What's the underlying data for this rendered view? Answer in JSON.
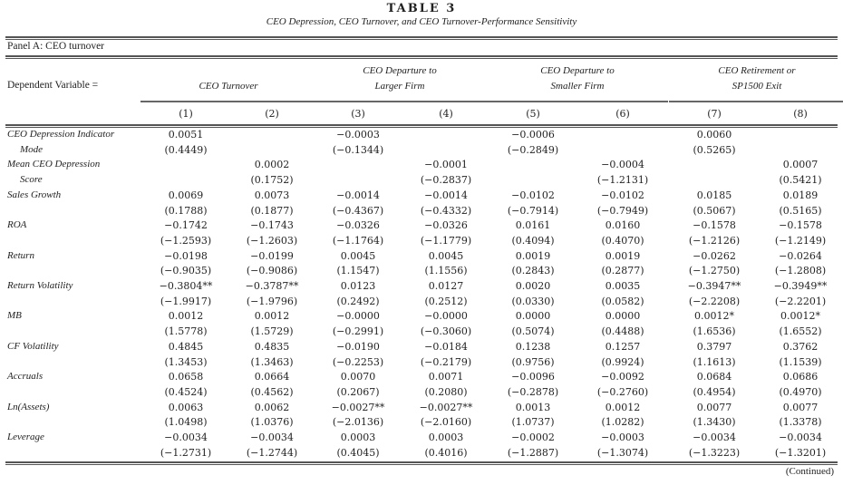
{
  "table": {
    "title": "TABLE 3",
    "subtitle": "CEO Depression, CEO Turnover, and CEO Turnover-Performance Sensitivity",
    "panel": "Panel A: CEO turnover",
    "dependent_label": "Dependent Variable =",
    "groups": [
      {
        "line1": "",
        "line2": "CEO Turnover"
      },
      {
        "line1": "CEO Departure to",
        "line2": "Larger Firm"
      },
      {
        "line1": "CEO Departure to",
        "line2": "Smaller Firm"
      },
      {
        "line1": "CEO Retirement or",
        "line2": "SP1500 Exit"
      }
    ],
    "columns": [
      "(1)",
      "(2)",
      "(3)",
      "(4)",
      "(5)",
      "(6)",
      "(7)",
      "(8)"
    ],
    "rows": [
      {
        "label": [
          "CEO Depression Indicator",
          "Mode"
        ],
        "coef": [
          "0.0051",
          "",
          "−0.0003",
          "",
          "−0.0006",
          "",
          "0.0060",
          ""
        ],
        "tstat": [
          "(0.4449)",
          "",
          "(−0.1344)",
          "",
          "(−0.2849)",
          "",
          "(0.5265)",
          ""
        ]
      },
      {
        "label": [
          "Mean CEO Depression",
          "Score"
        ],
        "coef": [
          "",
          "0.0002",
          "",
          "−0.0001",
          "",
          "−0.0004",
          "",
          "0.0007"
        ],
        "tstat": [
          "",
          "(0.1752)",
          "",
          "(−0.2837)",
          "",
          "(−1.2131)",
          "",
          "(0.5421)"
        ]
      },
      {
        "label": [
          "Sales Growth"
        ],
        "coef": [
          "0.0069",
          "0.0073",
          "−0.0014",
          "−0.0014",
          "−0.0102",
          "−0.0102",
          "0.0185",
          "0.0189"
        ],
        "tstat": [
          "(0.1788)",
          "(0.1877)",
          "(−0.4367)",
          "(−0.4332)",
          "(−0.7914)",
          "(−0.7949)",
          "(0.5067)",
          "(0.5165)"
        ]
      },
      {
        "label": [
          "ROA"
        ],
        "coef": [
          "−0.1742",
          "−0.1743",
          "−0.0326",
          "−0.0326",
          "0.0161",
          "0.0160",
          "−0.1578",
          "−0.1578"
        ],
        "tstat": [
          "(−1.2593)",
          "(−1.2603)",
          "(−1.1764)",
          "(−1.1779)",
          "(0.4094)",
          "(0.4070)",
          "(−1.2126)",
          "(−1.2149)"
        ]
      },
      {
        "label": [
          "Return"
        ],
        "coef": [
          "−0.0198",
          "−0.0199",
          "0.0045",
          "0.0045",
          "0.0019",
          "0.0019",
          "−0.0262",
          "−0.0264"
        ],
        "tstat": [
          "(−0.9035)",
          "(−0.9086)",
          "(1.1547)",
          "(1.1556)",
          "(0.2843)",
          "(0.2877)",
          "(−1.2750)",
          "(−1.2808)"
        ]
      },
      {
        "label": [
          "Return Volatility"
        ],
        "coef": [
          "−0.3804**",
          "−0.3787**",
          "0.0123",
          "0.0127",
          "0.0020",
          "0.0035",
          "−0.3947**",
          "−0.3949**"
        ],
        "tstat": [
          "(−1.9917)",
          "(−1.9796)",
          "(0.2492)",
          "(0.2512)",
          "(0.0330)",
          "(0.0582)",
          "(−2.2208)",
          "(−2.2201)"
        ]
      },
      {
        "label": [
          "MB"
        ],
        "coef": [
          "0.0012",
          "0.0012",
          "−0.0000",
          "−0.0000",
          "0.0000",
          "0.0000",
          "0.0012*",
          "0.0012*"
        ],
        "tstat": [
          "(1.5778)",
          "(1.5729)",
          "(−0.2991)",
          "(−0.3060)",
          "(0.5074)",
          "(0.4488)",
          "(1.6536)",
          "(1.6552)"
        ]
      },
      {
        "label": [
          "CF Volatility"
        ],
        "coef": [
          "0.4845",
          "0.4835",
          "−0.0190",
          "−0.0184",
          "0.1238",
          "0.1257",
          "0.3797",
          "0.3762"
        ],
        "tstat": [
          "(1.3453)",
          "(1.3463)",
          "(−0.2253)",
          "(−0.2179)",
          "(0.9756)",
          "(0.9924)",
          "(1.1613)",
          "(1.1539)"
        ]
      },
      {
        "label": [
          "Accruals"
        ],
        "coef": [
          "0.0658",
          "0.0664",
          "0.0070",
          "0.0071",
          "−0.0096",
          "−0.0092",
          "0.0684",
          "0.0686"
        ],
        "tstat": [
          "(0.4524)",
          "(0.4562)",
          "(0.2067)",
          "(0.2080)",
          "(−0.2878)",
          "(−0.2760)",
          "(0.4954)",
          "(0.4970)"
        ]
      },
      {
        "label": [
          "Ln(Assets)"
        ],
        "coef": [
          "0.0063",
          "0.0062",
          "−0.0027**",
          "−0.0027**",
          "0.0013",
          "0.0012",
          "0.0077",
          "0.0077"
        ],
        "tstat": [
          "(1.0498)",
          "(1.0376)",
          "(−2.0136)",
          "(−2.0160)",
          "(1.0737)",
          "(1.0282)",
          "(1.3430)",
          "(1.3378)"
        ]
      },
      {
        "label": [
          "Leverage"
        ],
        "coef": [
          "−0.0034",
          "−0.0034",
          "0.0003",
          "0.0003",
          "−0.0002",
          "−0.0003",
          "−0.0034",
          "−0.0034"
        ],
        "tstat": [
          "(−1.2731)",
          "(−1.2744)",
          "(0.4045)",
          "(0.4016)",
          "(−1.2887)",
          "(−1.3074)",
          "(−1.3223)",
          "(−1.3201)"
        ]
      }
    ],
    "continued": "(Continued)"
  }
}
